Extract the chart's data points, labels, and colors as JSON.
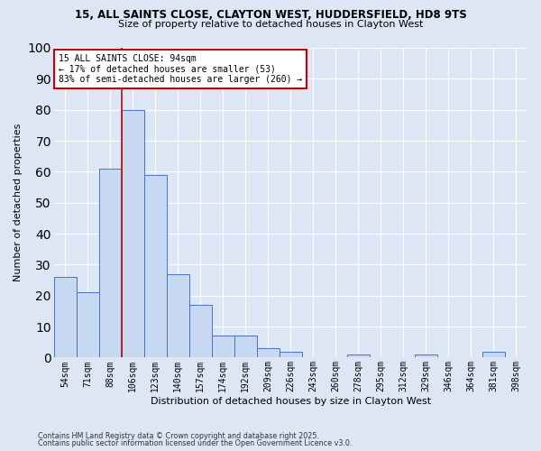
{
  "title_line1": "15, ALL SAINTS CLOSE, CLAYTON WEST, HUDDERSFIELD, HD8 9TS",
  "title_line2": "Size of property relative to detached houses in Clayton West",
  "xlabel": "Distribution of detached houses by size in Clayton West",
  "ylabel": "Number of detached properties",
  "categories": [
    "54sqm",
    "71sqm",
    "88sqm",
    "106sqm",
    "123sqm",
    "140sqm",
    "157sqm",
    "174sqm",
    "192sqm",
    "209sqm",
    "226sqm",
    "243sqm",
    "260sqm",
    "278sqm",
    "295sqm",
    "312sqm",
    "329sqm",
    "346sqm",
    "364sqm",
    "381sqm",
    "398sqm"
  ],
  "values": [
    26,
    21,
    61,
    80,
    59,
    27,
    17,
    7,
    7,
    3,
    2,
    0,
    0,
    1,
    0,
    0,
    1,
    0,
    0,
    2,
    0
  ],
  "bar_color": "#c6d9f1",
  "bar_edge_color": "#4472c4",
  "property_line_x": 2.5,
  "annotation_text": "15 ALL SAINTS CLOSE: 94sqm\n← 17% of detached houses are smaller (53)\n83% of semi-detached houses are larger (260) →",
  "annotation_box_color": "#ffffff",
  "annotation_box_edge": "#cc0000",
  "property_line_color": "#cc0000",
  "ylim": [
    0,
    100
  ],
  "yticks": [
    0,
    10,
    20,
    30,
    40,
    50,
    60,
    70,
    80,
    90,
    100
  ],
  "background_color": "#dce6f5",
  "grid_color": "#ffffff",
  "footer_line1": "Contains HM Land Registry data © Crown copyright and database right 2025.",
  "footer_line2": "Contains public sector information licensed under the Open Government Licence v3.0."
}
